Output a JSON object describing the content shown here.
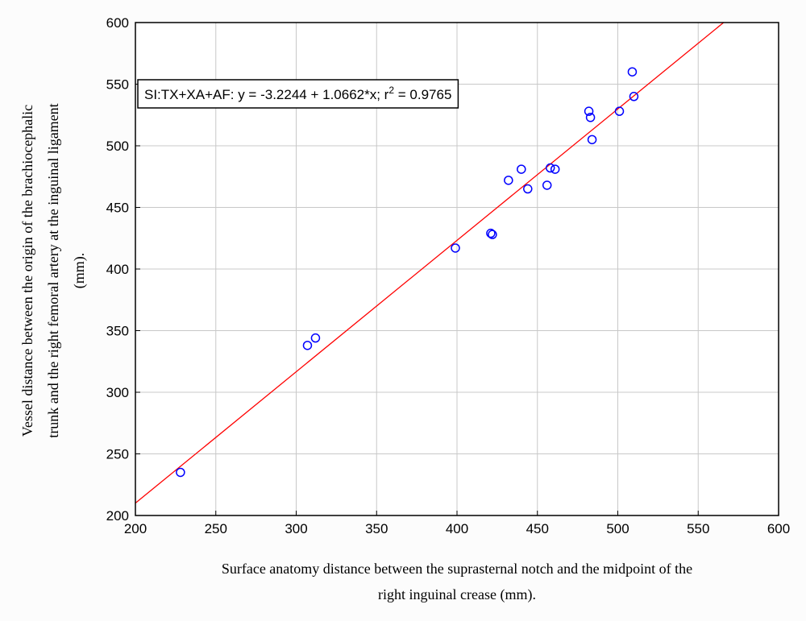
{
  "colors": {
    "background": "#fcfcfc",
    "plot_background": "#ffffff",
    "grid": "#c8c8c8",
    "point": "#0000ff",
    "fit_line": "#ff0000",
    "axis": "#000000"
  },
  "chart_data": {
    "type": "scatter",
    "xlabel_lines": [
      "Surface anatomy distance between the suprasternal notch and the midpoint of the",
      "right inguinal crease (mm)."
    ],
    "ylabel_lines": [
      "Vessel distance between the origin of the brachiocephalic",
      "trunk and the right femoral artery at the inguinal ligament",
      "(mm)."
    ],
    "xlim": [
      200,
      600
    ],
    "ylim": [
      200,
      600
    ],
    "xticks": [
      "200",
      "250",
      "300",
      "350",
      "400",
      "450",
      "500",
      "550",
      "600"
    ],
    "yticks": [
      "200",
      "250",
      "300",
      "350",
      "400",
      "450",
      "500",
      "550",
      "600"
    ],
    "grid": true,
    "legend": {
      "placement": "top-left",
      "prefix": "SI:TX+XA+AF:   y = -3.2244 + 1.0662*x; r",
      "superscript": "2",
      "suffix": " = 0.9765"
    },
    "fit": {
      "intercept": -3.2244,
      "slope": 1.0662
    },
    "points": [
      {
        "x": 228,
        "y": 235
      },
      {
        "x": 307,
        "y": 338
      },
      {
        "x": 312,
        "y": 344
      },
      {
        "x": 399,
        "y": 417
      },
      {
        "x": 421,
        "y": 429
      },
      {
        "x": 422,
        "y": 428
      },
      {
        "x": 432,
        "y": 472
      },
      {
        "x": 440,
        "y": 481
      },
      {
        "x": 444,
        "y": 465
      },
      {
        "x": 456,
        "y": 468
      },
      {
        "x": 458,
        "y": 482
      },
      {
        "x": 461,
        "y": 481
      },
      {
        "x": 482,
        "y": 528
      },
      {
        "x": 483,
        "y": 523
      },
      {
        "x": 484,
        "y": 505
      },
      {
        "x": 501,
        "y": 528
      },
      {
        "x": 509,
        "y": 560
      },
      {
        "x": 510,
        "y": 540
      }
    ]
  }
}
